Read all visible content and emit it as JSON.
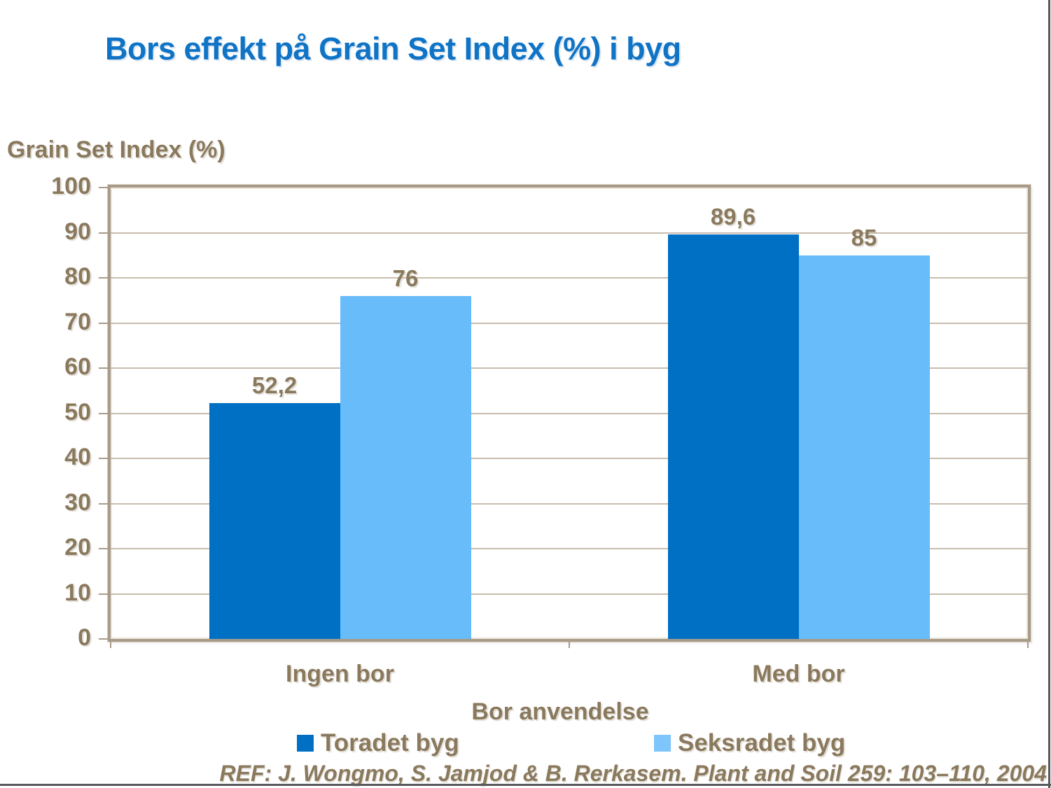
{
  "page": {
    "background": "#ffffff",
    "edge_line_color": "#58595b"
  },
  "title": {
    "text": "Bors effekt på Grain Set Index (%) i byg",
    "color": "#1074C6"
  },
  "chart_data": {
    "type": "bar",
    "title": "Bors effekt på Grain Set Index (%) i byg",
    "y_axis_title": "Grain Set Index (%)",
    "x_axis_title": "Bor anvendelse",
    "categories": [
      "Ingen bor",
      "Med bor"
    ],
    "series": [
      {
        "name": "Toradet byg",
        "color": "#0070C4",
        "legend_color": "#0070C4",
        "values": [
          52.2,
          89.6
        ],
        "value_labels": [
          "52,2",
          "89,6"
        ]
      },
      {
        "name": "Seksradet byg",
        "color": "#69BCFA",
        "legend_color": "#7EC5FB",
        "values": [
          76,
          85
        ],
        "value_labels": [
          "76",
          "85"
        ]
      }
    ],
    "ylim": [
      0,
      100
    ],
    "ytick_step": 10,
    "ytick_labels": [
      "0",
      "10",
      "20",
      "30",
      "40",
      "50",
      "60",
      "70",
      "80",
      "90",
      "100"
    ],
    "grid": true,
    "gridline_color": "#C9BDAE",
    "plot_border_color": "#A89B89",
    "label_color": "#8A795D",
    "legend_position": "bottom"
  },
  "footer": {
    "reference": "REF: J. Wongmo, S. Jamjod & B. Rerkasem. Plant and Soil 259: 103–110, 2004"
  }
}
